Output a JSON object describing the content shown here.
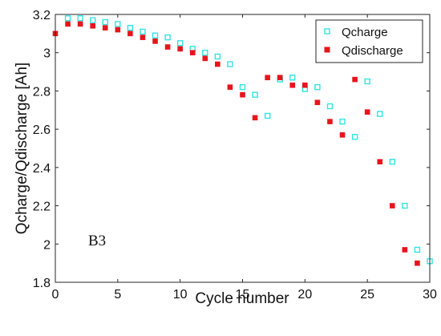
{
  "chart_data": {
    "type": "scatter",
    "xlabel": "Cycle number",
    "ylabel": "Qcharge/Qdischarge [Ah]",
    "xlim": [
      0,
      30
    ],
    "ylim": [
      1.8,
      3.2
    ],
    "xticks": [
      "0",
      "5",
      "10",
      "15",
      "20",
      "25",
      "30"
    ],
    "yticks": [
      "1.8",
      "2",
      "2.2",
      "2.4",
      "2.6",
      "2.8",
      "3",
      "3.2"
    ],
    "grid": false,
    "legend_position": "top-right",
    "annotation": "B3",
    "series": [
      {
        "name": "Qcharge",
        "color": "#33e3e3",
        "marker": "open-square",
        "x": [
          1,
          2,
          3,
          4,
          5,
          6,
          7,
          8,
          9,
          10,
          11,
          12,
          13,
          14,
          15,
          16,
          17,
          18,
          19,
          20,
          21,
          22,
          23,
          24,
          25,
          26,
          27,
          28,
          29,
          30
        ],
        "y": [
          3.18,
          3.18,
          3.17,
          3.16,
          3.15,
          3.13,
          3.11,
          3.09,
          3.08,
          3.05,
          3.02,
          3.0,
          2.98,
          2.94,
          2.82,
          2.78,
          2.67,
          2.86,
          2.87,
          2.81,
          2.82,
          2.72,
          2.64,
          2.56,
          2.85,
          2.68,
          2.43,
          2.2,
          1.97,
          1.91
        ]
      },
      {
        "name": "Qdischarge",
        "color": "#e8141c",
        "marker": "filled-square",
        "x": [
          0,
          1,
          2,
          3,
          4,
          5,
          6,
          7,
          8,
          9,
          10,
          11,
          12,
          13,
          14,
          15,
          16,
          17,
          18,
          19,
          20,
          21,
          22,
          23,
          24,
          25,
          26,
          27,
          28,
          29
        ],
        "y": [
          3.1,
          3.15,
          3.15,
          3.14,
          3.13,
          3.12,
          3.1,
          3.08,
          3.06,
          3.03,
          3.02,
          3.0,
          2.97,
          2.94,
          2.82,
          2.78,
          2.66,
          2.87,
          2.87,
          2.83,
          2.83,
          2.74,
          2.64,
          2.57,
          2.86,
          2.69,
          2.43,
          2.2,
          1.97,
          1.9
        ]
      }
    ]
  }
}
